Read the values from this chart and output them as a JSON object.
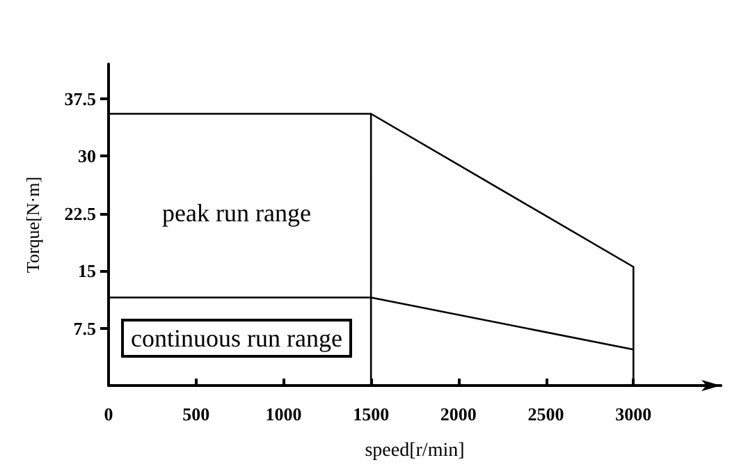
{
  "chart_data": {
    "type": "line",
    "xlabel": "speed[r/min]",
    "ylabel": "Torque[N·m]",
    "xlim": [
      0,
      3500
    ],
    "ylim": [
      0,
      42
    ],
    "xticks": [
      0,
      500,
      1000,
      1500,
      2000,
      2500,
      3000
    ],
    "yticks": [
      7.5,
      15,
      22.5,
      30,
      37.5
    ],
    "series": [
      {
        "color": "#000000",
        "x": [
          0,
          1500,
          1500,
          1500,
          3000,
          3000
        ],
        "values": [
          35.5,
          35.5,
          0,
          35.5,
          15.5,
          0
        ]
      },
      {
        "color": "#000000",
        "x": [
          0,
          1500,
          3000
        ],
        "values": [
          11.5,
          11.5,
          4.7
        ]
      }
    ],
    "annotations": [
      "peak run range",
      "continuous run range"
    ],
    "grid": false,
    "marker": "none",
    "line_style": "solid"
  }
}
